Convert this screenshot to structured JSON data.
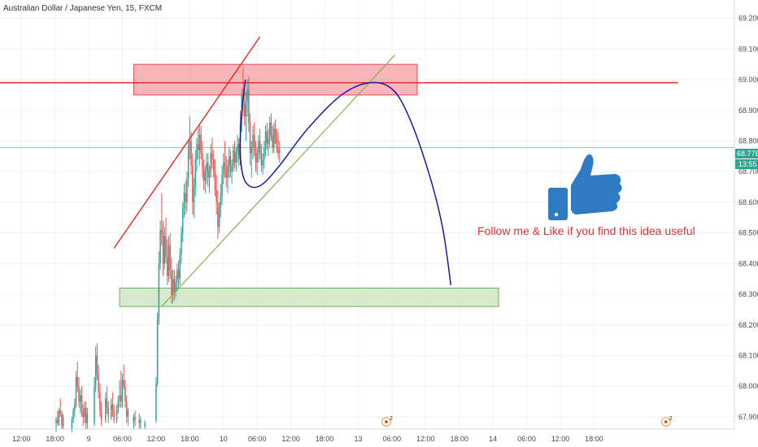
{
  "header": {
    "symbol_title": "Australian Dollar / Japanese Yen, 15, FXCM"
  },
  "colors": {
    "up_candle": "#26a69a",
    "down_candle": "#ef5350",
    "resistance_line": "#e8231e",
    "resistance_zone_fill": "#f5a3a9",
    "resistance_zone_stroke": "#e84a55",
    "support_zone_fill": "#cfe8c4",
    "support_zone_stroke": "#6bb15a",
    "trend_up_line": "#e8231e",
    "trend_support_line": "#7bab3f",
    "projection_curve": "#1a1aa6",
    "current_price_line": "#2fa58f",
    "annotation_text": "#e0312f",
    "thumb_icon": "#2e7bc4",
    "grid": "#eef0f3"
  },
  "annotation": {
    "text": "Follow me & Like if you find this idea useful",
    "icon": "thumbs-up-icon"
  },
  "current_price": {
    "value_label": "68.778",
    "countdown_label": "13:55",
    "value": 68.778
  },
  "events": [
    {
      "label": "2",
      "icon": "economic-event-icon",
      "x": 59.0
    },
    {
      "label": "2",
      "icon": "economic-event-icon",
      "x": 108.8
    }
  ],
  "chart_data": {
    "type": "candlestick",
    "title": "Australian Dollar / Japanese Yen, 15, FXCM",
    "xlabel": "",
    "ylabel": "",
    "x_unit": "hours since 00:00 of day 9",
    "ylim": [
      67.86,
      69.26
    ],
    "xlim": [
      -9.8,
      121.0
    ],
    "grid": true,
    "x_ticks": [
      {
        "x": -6,
        "label": "12:00"
      },
      {
        "x": 0,
        "label": "18:00"
      },
      {
        "x": 6,
        "label": "9"
      },
      {
        "x": 12,
        "label": "06:00"
      },
      {
        "x": 18,
        "label": "12:00"
      },
      {
        "x": 24,
        "label": "18:00"
      },
      {
        "x": 30,
        "label": "10"
      },
      {
        "x": 36,
        "label": "06:00"
      },
      {
        "x": 42,
        "label": "12:00"
      },
      {
        "x": 48,
        "label": "18:00"
      },
      {
        "x": 54,
        "label": "13"
      },
      {
        "x": 60,
        "label": "06:00"
      },
      {
        "x": 66,
        "label": "12:00"
      },
      {
        "x": 72,
        "label": "18:00"
      },
      {
        "x": 78,
        "label": "14"
      },
      {
        "x": 84,
        "label": "06:00"
      },
      {
        "x": 90,
        "label": "12:00"
      },
      {
        "x": 96,
        "label": "18:00"
      }
    ],
    "y_ticks": [
      67.9,
      68.0,
      68.1,
      68.2,
      68.3,
      68.4,
      68.5,
      68.6,
      68.7,
      68.8,
      68.9,
      69.0,
      69.1,
      69.2
    ],
    "y_tick_labels": [
      "67.900",
      "68.000",
      "68.100",
      "68.200",
      "68.300",
      "68.400",
      "68.500",
      "68.600",
      "68.700",
      "68.800",
      "68.900",
      "69.000",
      "69.100",
      "69.200"
    ],
    "candles": [
      [
        0.2,
        67.88,
        67.9,
        67.85,
        67.89
      ],
      [
        0.45,
        67.89,
        67.92,
        67.87,
        67.88
      ],
      [
        0.7,
        67.88,
        67.93,
        67.87,
        67.92
      ],
      [
        0.95,
        67.92,
        67.96,
        67.9,
        67.91
      ],
      [
        1.2,
        67.91,
        67.92,
        67.86,
        67.87
      ],
      [
        1.45,
        67.87,
        67.91,
        67.86,
        67.9
      ],
      [
        3.0,
        67.86,
        67.9,
        67.85,
        67.89
      ],
      [
        3.25,
        67.89,
        67.93,
        67.88,
        67.92
      ],
      [
        3.5,
        67.92,
        67.96,
        67.9,
        67.94
      ],
      [
        3.75,
        67.94,
        68.05,
        67.93,
        68.03
      ],
      [
        4.0,
        68.03,
        68.08,
        67.98,
        68.0
      ],
      [
        4.25,
        68.0,
        68.03,
        67.93,
        67.95
      ],
      [
        4.5,
        67.95,
        67.99,
        67.91,
        67.97
      ],
      [
        4.75,
        67.97,
        68.0,
        67.9,
        67.92
      ],
      [
        5.0,
        67.92,
        67.94,
        67.87,
        67.9
      ],
      [
        5.25,
        67.9,
        67.95,
        67.88,
        67.93
      ],
      [
        5.5,
        67.93,
        67.95,
        67.86,
        67.88
      ],
      [
        5.75,
        67.88,
        67.93,
        67.86,
        67.91
      ],
      [
        7.0,
        67.88,
        68.03,
        67.87,
        68.0
      ],
      [
        7.25,
        68.0,
        68.13,
        67.98,
        68.1
      ],
      [
        7.5,
        68.1,
        68.14,
        68.02,
        68.04
      ],
      [
        7.75,
        68.04,
        68.07,
        67.96,
        67.98
      ],
      [
        8.0,
        67.98,
        68.01,
        67.9,
        67.92
      ],
      [
        8.25,
        67.92,
        67.95,
        67.87,
        67.89
      ],
      [
        9.0,
        67.89,
        67.98,
        67.88,
        67.96
      ],
      [
        9.25,
        67.96,
        68.0,
        67.91,
        67.93
      ],
      [
        9.5,
        67.93,
        67.95,
        67.88,
        67.9
      ],
      [
        10.0,
        67.9,
        67.96,
        67.89,
        67.94
      ],
      [
        10.25,
        67.94,
        67.98,
        67.9,
        67.92
      ],
      [
        10.5,
        67.92,
        67.94,
        67.88,
        67.89
      ],
      [
        11.0,
        67.89,
        67.94,
        67.88,
        67.93
      ],
      [
        11.25,
        67.93,
        67.97,
        67.91,
        67.95
      ],
      [
        11.5,
        67.95,
        68.02,
        67.93,
        67.97
      ],
      [
        11.75,
        67.97,
        68.05,
        67.93,
        67.95
      ],
      [
        12.0,
        67.95,
        68.04,
        67.93,
        68.02
      ],
      [
        12.25,
        68.02,
        68.07,
        67.99,
        68.0
      ],
      [
        12.5,
        68.0,
        68.02,
        67.93,
        67.95
      ],
      [
        12.75,
        67.95,
        67.97,
        67.88,
        67.9
      ],
      [
        13.0,
        67.9,
        67.93,
        67.87,
        67.92
      ],
      [
        14.0,
        67.88,
        67.91,
        67.86,
        67.9
      ],
      [
        14.25,
        67.9,
        67.92,
        67.87,
        67.89
      ],
      [
        15.0,
        67.89,
        67.91,
        67.86,
        67.88
      ],
      [
        15.25,
        67.88,
        67.9,
        67.86,
        67.89
      ],
      [
        16.0,
        67.87,
        67.89,
        67.86,
        67.88
      ],
      [
        18.0,
        67.89,
        68.03,
        67.88,
        68.01
      ],
      [
        18.25,
        68.01,
        68.24,
        68.0,
        68.22
      ],
      [
        18.5,
        68.22,
        68.44,
        68.2,
        68.4
      ],
      [
        18.75,
        68.4,
        68.54,
        68.38,
        68.51
      ],
      [
        19.0,
        68.51,
        68.63,
        68.46,
        68.5
      ],
      [
        19.25,
        68.5,
        68.54,
        68.36,
        68.4
      ],
      [
        19.5,
        68.4,
        68.52,
        68.38,
        68.49
      ],
      [
        19.75,
        68.49,
        68.55,
        68.4,
        68.42
      ],
      [
        20.0,
        68.42,
        68.48,
        68.33,
        68.36
      ],
      [
        20.25,
        68.36,
        68.49,
        68.34,
        68.46
      ],
      [
        20.5,
        68.46,
        68.5,
        68.35,
        68.38
      ],
      [
        20.75,
        68.38,
        68.42,
        68.27,
        68.3
      ],
      [
        21.0,
        68.3,
        68.38,
        68.27,
        68.35
      ],
      [
        21.25,
        68.35,
        68.38,
        68.28,
        68.31
      ],
      [
        21.5,
        68.31,
        68.36,
        68.29,
        68.34
      ],
      [
        21.75,
        68.34,
        68.4,
        68.31,
        68.38
      ],
      [
        22.0,
        68.38,
        68.41,
        68.32,
        68.35
      ],
      [
        22.25,
        68.35,
        68.45,
        68.33,
        68.43
      ],
      [
        22.5,
        68.43,
        68.52,
        68.4,
        68.5
      ],
      [
        22.75,
        68.5,
        68.6,
        68.47,
        68.58
      ],
      [
        23.0,
        68.58,
        68.66,
        68.55,
        68.63
      ],
      [
        23.25,
        68.63,
        68.67,
        68.56,
        68.6
      ],
      [
        23.5,
        68.6,
        68.7,
        68.57,
        68.68
      ],
      [
        23.75,
        68.68,
        68.8,
        68.65,
        68.77
      ],
      [
        24.0,
        68.77,
        68.88,
        68.74,
        68.8
      ],
      [
        24.25,
        68.8,
        68.83,
        68.69,
        68.72
      ],
      [
        24.5,
        68.72,
        68.76,
        68.56,
        68.6
      ],
      [
        24.75,
        68.6,
        68.68,
        68.55,
        68.65
      ],
      [
        25.0,
        68.65,
        68.77,
        68.62,
        68.74
      ],
      [
        25.25,
        68.74,
        68.81,
        68.7,
        68.79
      ],
      [
        25.5,
        68.79,
        68.84,
        68.74,
        68.77
      ],
      [
        25.75,
        68.77,
        68.85,
        68.72,
        68.82
      ],
      [
        26.0,
        68.82,
        68.85,
        68.74,
        68.76
      ],
      [
        26.25,
        68.76,
        68.8,
        68.68,
        68.71
      ],
      [
        26.5,
        68.71,
        68.74,
        68.64,
        68.67
      ],
      [
        26.75,
        68.67,
        68.72,
        68.63,
        68.7
      ],
      [
        27.0,
        68.7,
        68.76,
        68.66,
        68.73
      ],
      [
        27.25,
        68.73,
        68.76,
        68.65,
        68.68
      ],
      [
        27.5,
        68.68,
        68.72,
        68.63,
        68.7
      ],
      [
        27.75,
        68.7,
        68.79,
        68.68,
        68.76
      ],
      [
        28.0,
        68.76,
        68.81,
        68.71,
        68.74
      ],
      [
        28.25,
        68.74,
        68.77,
        68.68,
        68.7
      ],
      [
        28.5,
        68.7,
        68.74,
        68.62,
        68.64
      ],
      [
        28.75,
        68.64,
        68.69,
        68.56,
        68.6
      ],
      [
        29.0,
        68.6,
        68.64,
        68.48,
        68.52
      ],
      [
        29.25,
        68.52,
        68.6,
        68.5,
        68.58
      ],
      [
        29.5,
        68.58,
        68.66,
        68.55,
        68.62
      ],
      [
        29.75,
        68.62,
        68.72,
        68.59,
        68.69
      ],
      [
        30.0,
        68.69,
        68.76,
        68.66,
        68.73
      ],
      [
        30.25,
        68.73,
        68.8,
        68.68,
        68.71
      ],
      [
        30.5,
        68.71,
        68.75,
        68.65,
        68.68
      ],
      [
        30.75,
        68.68,
        68.74,
        68.63,
        68.72
      ],
      [
        31.0,
        68.72,
        68.78,
        68.68,
        68.75
      ],
      [
        31.25,
        68.75,
        68.77,
        68.68,
        68.7
      ],
      [
        31.5,
        68.7,
        68.74,
        68.66,
        68.72
      ],
      [
        31.75,
        68.72,
        68.79,
        68.7,
        68.77
      ],
      [
        32.0,
        68.77,
        68.8,
        68.71,
        68.73
      ],
      [
        32.25,
        68.73,
        68.78,
        68.7,
        68.76
      ],
      [
        32.5,
        68.76,
        68.82,
        68.73,
        68.79
      ],
      [
        32.75,
        68.79,
        68.81,
        68.72,
        68.74
      ],
      [
        33.0,
        68.74,
        68.9,
        68.72,
        68.86
      ],
      [
        33.25,
        68.86,
        68.97,
        68.83,
        68.95
      ],
      [
        33.5,
        68.95,
        69.04,
        68.88,
        68.92
      ],
      [
        33.75,
        68.92,
        68.99,
        68.85,
        68.88
      ],
      [
        34.0,
        68.88,
        68.96,
        68.8,
        68.93
      ],
      [
        34.25,
        68.93,
        69.0,
        68.88,
        68.97
      ],
      [
        34.5,
        68.97,
        69.01,
        68.83,
        68.86
      ],
      [
        34.75,
        68.86,
        68.89,
        68.72,
        68.76
      ],
      [
        35.0,
        68.76,
        68.8,
        68.68,
        68.78
      ],
      [
        35.25,
        68.78,
        68.85,
        68.74,
        68.82
      ],
      [
        35.5,
        68.82,
        68.86,
        68.75,
        68.77
      ],
      [
        35.75,
        68.77,
        68.8,
        68.7,
        68.73
      ],
      [
        36.0,
        68.73,
        68.78,
        68.69,
        68.76
      ],
      [
        36.25,
        68.76,
        68.82,
        68.73,
        68.8
      ],
      [
        36.5,
        68.8,
        68.84,
        68.74,
        68.76
      ],
      [
        36.75,
        68.76,
        68.79,
        68.7,
        68.72
      ],
      [
        37.0,
        68.72,
        68.76,
        68.69,
        68.74
      ],
      [
        37.25,
        68.74,
        68.8,
        68.71,
        68.78
      ],
      [
        37.5,
        68.78,
        68.85,
        68.75,
        68.83
      ],
      [
        37.75,
        68.83,
        68.86,
        68.77,
        68.79
      ],
      [
        38.0,
        68.79,
        68.84,
        68.75,
        68.81
      ],
      [
        38.25,
        68.81,
        68.88,
        68.78,
        68.86
      ],
      [
        38.5,
        68.86,
        68.89,
        68.8,
        68.82
      ],
      [
        38.75,
        68.82,
        68.85,
        68.76,
        68.78
      ],
      [
        39.0,
        68.78,
        68.86,
        68.76,
        68.84
      ],
      [
        39.25,
        68.84,
        68.87,
        68.79,
        68.81
      ],
      [
        39.5,
        68.81,
        68.84,
        68.76,
        68.78
      ],
      [
        39.75,
        68.78,
        68.83,
        68.74,
        68.76
      ],
      [
        40.0,
        68.76,
        68.8,
        68.73,
        68.77
      ]
    ],
    "resistance_level": 68.99,
    "resistance_zone": {
      "x0": 14.0,
      "x1": 64.5,
      "y0": 68.95,
      "y1": 69.05
    },
    "support_zone": {
      "x0": 11.5,
      "x1": 79.0,
      "y0": 68.26,
      "y1": 68.32
    },
    "trend_up_line": {
      "x0": 10.5,
      "y0": 68.45,
      "x1": 36.5,
      "y1": 69.14
    },
    "trend_support_line": {
      "x0": 19.0,
      "y0": 68.26,
      "x1": 60.5,
      "y1": 69.08
    },
    "projection_curve": [
      [
        33.9,
        69.0
      ],
      [
        33.2,
        68.88
      ],
      [
        33.0,
        68.76
      ],
      [
        33.6,
        68.68
      ],
      [
        35.0,
        68.65
      ],
      [
        37.0,
        68.66
      ],
      [
        40.0,
        68.72
      ],
      [
        45.0,
        68.84
      ],
      [
        51.0,
        68.95
      ],
      [
        56.0,
        68.99
      ],
      [
        60.0,
        68.97
      ],
      [
        63.0,
        68.88
      ],
      [
        66.5,
        68.7
      ],
      [
        69.0,
        68.52
      ],
      [
        70.5,
        68.33
      ]
    ]
  }
}
